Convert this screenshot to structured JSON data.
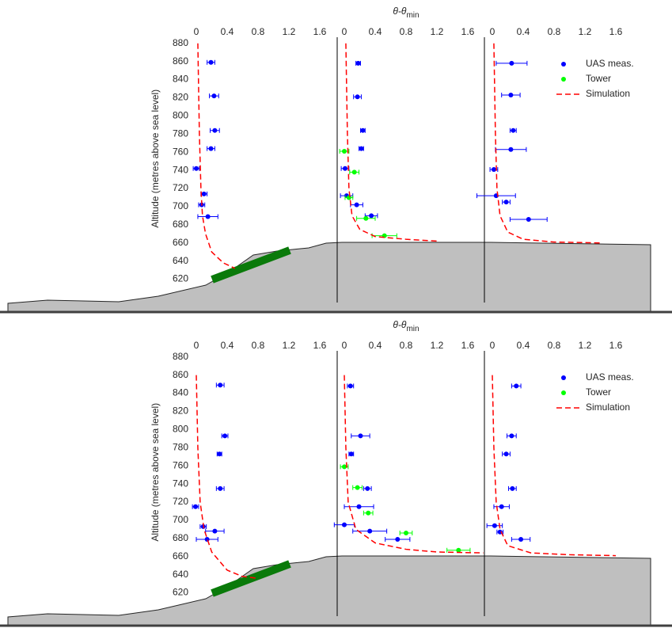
{
  "chart_data": [
    {
      "type": "profile",
      "x_label": "θ-θ",
      "x_label_sub": "min",
      "y_label": "Altitude (metres above sea level)",
      "ylim": [
        610,
        885
      ],
      "yticks": [
        620,
        640,
        660,
        680,
        700,
        720,
        740,
        760,
        780,
        800,
        820,
        840,
        860,
        880
      ],
      "xlim": [
        0,
        1.6
      ],
      "xticks": [
        0,
        0.4,
        0.8,
        1.2,
        1.6
      ],
      "series": [
        {
          "name": "UAS meas.",
          "color": "#0000ff",
          "profiles": [
            {
              "x": [
                0.19,
                0.23,
                0.24,
                0.19,
                0.0,
                0.1,
                0.07,
                0.15
              ],
              "y": [
                859,
                822,
                784,
                764,
                742,
                714,
                702,
                689
              ],
              "xerr": [
                0.05,
                0.06,
                0.06,
                0.05,
                0.04,
                0.04,
                0.04,
                0.13
              ]
            },
            {
              "x": [
                0.18,
                0.17,
                0.24,
                0.22,
                0.01,
                0.03,
                0.16,
                0.35
              ],
              "y": [
                858,
                821,
                784,
                764,
                742,
                712,
                702,
                690
              ],
              "xerr": [
                0.03,
                0.05,
                0.03,
                0.03,
                0.05,
                0.08,
                0.08,
                0.08
              ]
            },
            {
              "x": [
                0.25,
                0.24,
                0.27,
                0.24,
                0.02,
                0.05,
                0.18,
                0.47
              ],
              "y": [
                858,
                823,
                784,
                763,
                741,
                712,
                705,
                686
              ],
              "xerr": [
                0.2,
                0.12,
                0.04,
                0.2,
                0.05,
                0.25,
                0.05,
                0.24
              ]
            }
          ]
        },
        {
          "name": "Tower",
          "color": "#00ff00",
          "profiles": [
            null,
            {
              "x": [
                0.0,
                0.13,
                0.06,
                0.28,
                0.52
              ],
              "y": [
                761,
                738,
                710,
                687,
                668
              ],
              "xerr": [
                0.06,
                0.06,
                0.05,
                0.12,
                0.16
              ]
            },
            null
          ]
        },
        {
          "name": "Simulation",
          "color": "#ff0000",
          "profiles": [
            {
              "x": [
                0.02,
                0.04,
                0.06,
                0.08,
                0.12,
                0.2,
                0.35,
                0.5
              ],
              "y": [
                880,
                780,
                720,
                690,
                670,
                650,
                638,
                632
              ]
            },
            {
              "x": [
                0.02,
                0.04,
                0.06,
                0.1,
                0.2,
                0.4,
                0.8,
                1.2
              ],
              "y": [
                880,
                780,
                720,
                690,
                675,
                667,
                664,
                662
              ]
            },
            {
              "x": [
                0.02,
                0.04,
                0.06,
                0.1,
                0.2,
                0.4,
                0.8,
                1.4
              ],
              "y": [
                880,
                780,
                720,
                690,
                672,
                664,
                661,
                660
              ]
            }
          ]
        }
      ]
    },
    {
      "type": "profile",
      "x_label": "θ-θ",
      "x_label_sub": "min",
      "y_label": "Altitude (metres above sea level)",
      "ylim": [
        610,
        885
      ],
      "yticks": [
        620,
        640,
        660,
        680,
        700,
        720,
        740,
        760,
        780,
        800,
        820,
        840,
        860,
        880
      ],
      "xlim": [
        0,
        1.6
      ],
      "xticks": [
        0,
        0.4,
        0.8,
        1.2,
        1.6
      ],
      "series": [
        {
          "name": "UAS meas.",
          "color": "#0000ff",
          "profiles": [
            {
              "x": [
                0.31,
                0.37,
                0.3,
                0.31,
                -0.01,
                0.09,
                0.24,
                0.14
              ],
              "y": [
                849,
                793,
                773,
                735,
                715,
                693,
                688,
                679
              ],
              "xerr": [
                0.05,
                0.04,
                0.03,
                0.05,
                0.04,
                0.04,
                0.12,
                0.14
              ]
            },
            {
              "x": [
                0.08,
                0.21,
                0.09,
                0.3,
                0.19,
                0.0,
                0.33,
                0.69
              ],
              "y": [
                848,
                793,
                773,
                735,
                715,
                695,
                688,
                679
              ],
              "xerr": [
                0.04,
                0.12,
                0.03,
                0.05,
                0.19,
                0.13,
                0.22,
                0.16
              ]
            },
            {
              "x": [
                0.31,
                0.25,
                0.18,
                0.26,
                0.12,
                0.03,
                0.1,
                0.37
              ],
              "y": [
                848,
                793,
                773,
                735,
                715,
                694,
                687,
                679
              ],
              "xerr": [
                0.06,
                0.06,
                0.05,
                0.05,
                0.1,
                0.1,
                0.04,
                0.12
              ]
            }
          ]
        },
        {
          "name": "Tower",
          "color": "#00ff00",
          "profiles": [
            null,
            {
              "x": [
                0.0,
                0.17,
                0.31,
                0.8,
                1.48
              ],
              "y": [
                759,
                736,
                708,
                686,
                667
              ],
              "xerr": [
                0.05,
                0.06,
                0.06,
                0.08,
                0.15
              ]
            },
            null
          ]
        },
        {
          "name": "Simulation",
          "color": "#ff0000",
          "profiles": [
            {
              "x": [
                0.0,
                0.02,
                0.05,
                0.1,
                0.2,
                0.4,
                0.6,
                0.8
              ],
              "y": [
                860,
                780,
                720,
                690,
                665,
                645,
                638,
                636
              ]
            },
            {
              "x": [
                0.0,
                0.02,
                0.05,
                0.15,
                0.4,
                0.8,
                1.2,
                1.8
              ],
              "y": [
                860,
                780,
                720,
                690,
                675,
                668,
                665,
                664
              ]
            },
            {
              "x": [
                0.0,
                0.02,
                0.05,
                0.1,
                0.2,
                0.5,
                1.0,
                1.6
              ],
              "y": [
                860,
                780,
                720,
                690,
                672,
                664,
                662,
                661
              ]
            }
          ]
        }
      ]
    }
  ]
}
